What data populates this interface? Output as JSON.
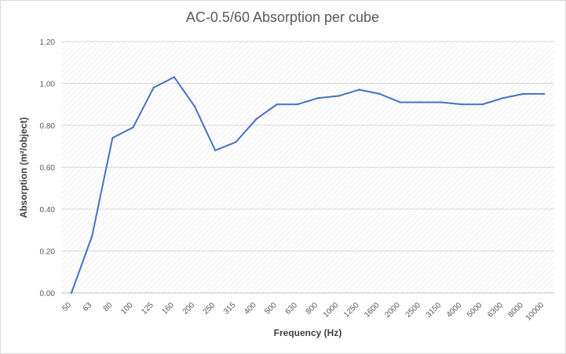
{
  "chart_data": {
    "type": "line",
    "title": "AC-0.5/60 Absorption per cube",
    "xlabel": "Frequency (Hz)",
    "ylabel": "Absorption (m²/object)",
    "ylim": [
      0,
      1.2
    ],
    "yticks": [
      "0.00",
      "0.20",
      "0.40",
      "0.60",
      "0.80",
      "1.00",
      "1.20"
    ],
    "grid": true,
    "legend": "none",
    "categories": [
      "50",
      "63",
      "80",
      "100",
      "125",
      "160",
      "200",
      "250",
      "315",
      "400",
      "500",
      "630",
      "800",
      "1000",
      "1250",
      "1600",
      "2000",
      "2500",
      "3150",
      "4000",
      "5000",
      "6300",
      "8000",
      "10000"
    ],
    "series": [
      {
        "values": [
          0.0,
          0.27,
          0.74,
          0.79,
          0.98,
          1.03,
          0.89,
          0.68,
          0.72,
          0.83,
          0.9,
          0.9,
          0.93,
          0.94,
          0.97,
          0.95,
          0.91,
          0.91,
          0.91,
          0.9,
          0.9,
          0.93,
          0.95,
          0.95
        ],
        "color": "#4472C4"
      }
    ]
  }
}
